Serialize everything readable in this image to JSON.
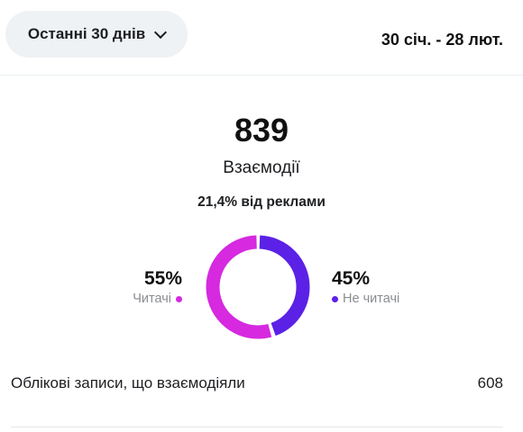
{
  "header": {
    "period_label": "Останні 30 днів",
    "date_range": "30 січ. - 28 лют."
  },
  "summary": {
    "value": "839",
    "label": "Взаємодії",
    "ads_share": "21,4% від реклами"
  },
  "breakdown": {
    "followers": {
      "percent": "55%",
      "label": "Читачі",
      "fraction": 0.55,
      "color": "#d629e0"
    },
    "non_followers": {
      "percent": "45%",
      "label": "Не читачі",
      "fraction": 0.45,
      "color": "#5b21e6"
    }
  },
  "accounts_row": {
    "label": "Облікові записи, що взаємодіяли",
    "value": "608"
  }
}
